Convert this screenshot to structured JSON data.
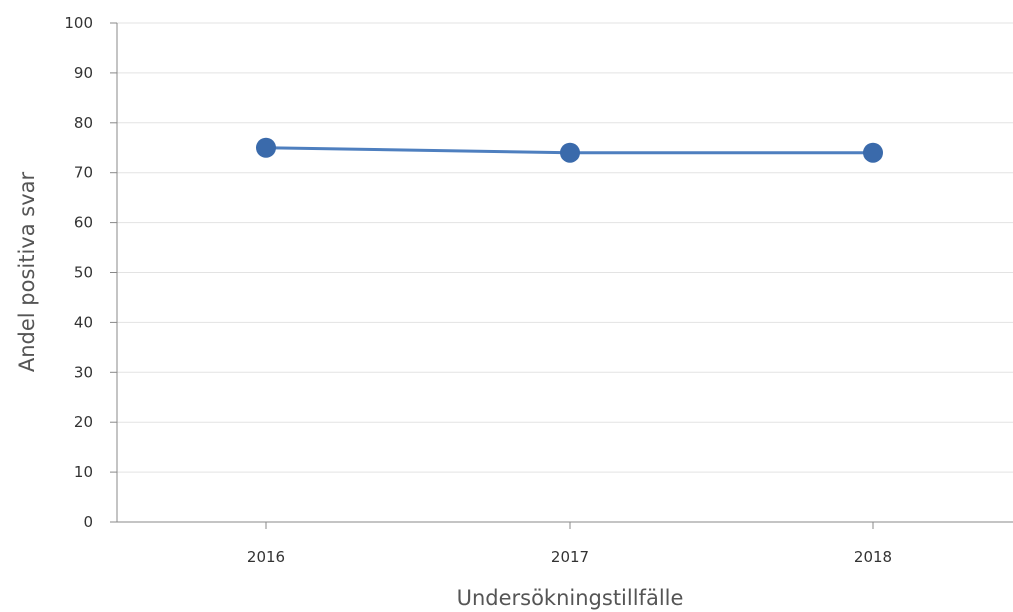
{
  "chart_data": {
    "type": "line",
    "categories": [
      "2016",
      "2017",
      "2018"
    ],
    "series": [
      {
        "values": [
          75,
          74,
          74
        ]
      }
    ],
    "xlabel": "Undersökningstillfälle",
    "ylabel": "Andel positiva svar",
    "ylim": [
      0,
      100
    ],
    "yticks": [
      0,
      10,
      20,
      30,
      40,
      50,
      60,
      70,
      80,
      90,
      100
    ],
    "grid": true,
    "legend": "none",
    "line_color": "#4e7fbf",
    "marker_color": "#3a6aab",
    "grid_color": "#e3e3e3",
    "axis_color": "#888888"
  }
}
